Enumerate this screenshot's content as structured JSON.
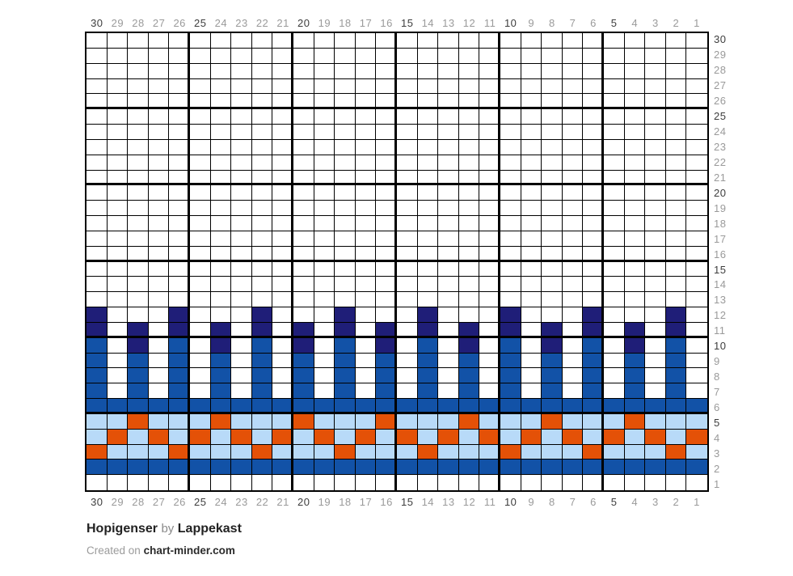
{
  "title": {
    "name": "Hopigenser",
    "by": "by",
    "author": "Lappekast"
  },
  "footer": {
    "created": "Created on",
    "site": "chart-minder.com"
  },
  "palette": {
    "white": "#ffffff",
    "navy": "#1f1e78",
    "blue": "#1252a7",
    "lightblue": "#b8daf8",
    "orange": "#e45107",
    "grid_line": "#000000",
    "label_gray": "#9a9a9a",
    "label_dark": "#3d3d3d"
  },
  "chart_data": {
    "type": "heatmap",
    "description": "30x30 colorwork knitting chart grid; symbols map to yarn colors via legend",
    "columns": 30,
    "rows": 30,
    "bold_grid_every": 5,
    "label_emphasis_every": 5,
    "column_labels": [
      "30",
      "29",
      "28",
      "27",
      "26",
      "25",
      "24",
      "23",
      "22",
      "21",
      "20",
      "19",
      "18",
      "17",
      "16",
      "15",
      "14",
      "13",
      "12",
      "11",
      "10",
      "9",
      "8",
      "7",
      "6",
      "5",
      "4",
      "3",
      "2",
      "1"
    ],
    "row_labels": [
      "30",
      "29",
      "28",
      "27",
      "26",
      "25",
      "24",
      "23",
      "22",
      "21",
      "20",
      "19",
      "18",
      "17",
      "16",
      "15",
      "14",
      "13",
      "12",
      "11",
      "10",
      "9",
      "8",
      "7",
      "6",
      "5",
      "4",
      "3",
      "2",
      "1"
    ],
    "legend": {
      ".": "white",
      "N": "navy",
      "B": "blue",
      "L": "lightblue",
      "O": "orange"
    },
    "rows_top_to_bottom": [
      "..............................",
      "..............................",
      "..............................",
      "..............................",
      "..............................",
      "..............................",
      "..............................",
      "..............................",
      "..............................",
      "..............................",
      "..............................",
      "..............................",
      "..............................",
      "..............................",
      "..............................",
      "..............................",
      "..............................",
      "..............................",
      "N...N...N...N...N...N...N...N.",
      "N.N.N.N.N.N.N.N.N.N.N.N.N.N.N.",
      "B.N.B.N.B.N.B.N.B.N.B.N.B.N.B.",
      "B.B.B.B.B.B.B.B.B.B.B.B.B.B.B.",
      "B.B.B.B.B.B.B.B.B.B.B.B.B.B.B.",
      "B.B.B.B.B.B.B.B.B.B.B.B.B.B.B.",
      "BBBBBBBBBBBBBBBBBBBBBBBBBBBBBB",
      "LLOLLLOLLLOLLLOLLLOLLLOLLLOLLL",
      "LOLOLOLOLOLOLOLOLOLOLOLOLOLOLO",
      "OLLLOLLLOLLLOLLLOLLLOLLLOLLLOL",
      "BBBBBBBBBBBBBBBBBBBBBBBBBBBBBB",
      ".............................."
    ]
  }
}
